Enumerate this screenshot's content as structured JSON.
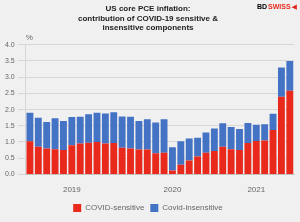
{
  "chart_data": {
    "type": "bar",
    "title": "US core PCE inflation:\ncontribution of COVID-19 sensitive &\ninsensitive components",
    "ylabel": "%",
    "categories": [
      null,
      null,
      null,
      null,
      null,
      "2019",
      null,
      null,
      null,
      null,
      null,
      null,
      null,
      null,
      null,
      null,
      null,
      "2020",
      null,
      null,
      null,
      null,
      null,
      null,
      null,
      null,
      null,
      "2021",
      null,
      null,
      null,
      null
    ],
    "series": [
      {
        "name": "COVID-sensitive",
        "color": "#e8291c",
        "values": [
          1.02,
          0.85,
          0.8,
          0.78,
          0.75,
          0.9,
          0.95,
          0.98,
          1.0,
          0.95,
          0.97,
          0.82,
          0.8,
          0.77,
          0.77,
          0.65,
          0.67,
          0.12,
          0.3,
          0.43,
          0.55,
          0.67,
          0.72,
          0.85,
          0.78,
          0.75,
          0.97,
          1.03,
          1.05,
          1.37,
          2.4,
          2.58
        ]
      },
      {
        "name": "Covid-insensitive",
        "color": "#4472c4",
        "values": [
          0.88,
          0.9,
          0.82,
          0.95,
          0.9,
          0.87,
          0.83,
          0.88,
          0.9,
          0.93,
          0.95,
          0.97,
          0.98,
          0.88,
          0.93,
          0.95,
          1.03,
          0.72,
          0.72,
          0.68,
          0.58,
          0.62,
          0.7,
          0.73,
          0.68,
          0.65,
          0.62,
          0.5,
          0.5,
          0.5,
          0.9,
          0.92
        ]
      }
    ],
    "stacked": true,
    "ylim": [
      0.0,
      4.0
    ],
    "yticks": [
      {
        "value": 0,
        "label": "0.0"
      },
      0.5,
      {
        "value": 1,
        "label": "1.0"
      },
      1.5,
      {
        "value": 2,
        "label": "2.0"
      },
      2.5,
      {
        "value": 3,
        "label": "3.0"
      },
      3.5,
      {
        "value": 4,
        "label": "4.0"
      }
    ],
    "grid": true,
    "legend": "bottom",
    "annotations": [
      {
        "text": "BD",
        "color": "#000000"
      },
      {
        "text": "SWISS",
        "color": "#e8291c"
      },
      {
        "text": "◀",
        "color": "#e8291c"
      }
    ]
  }
}
